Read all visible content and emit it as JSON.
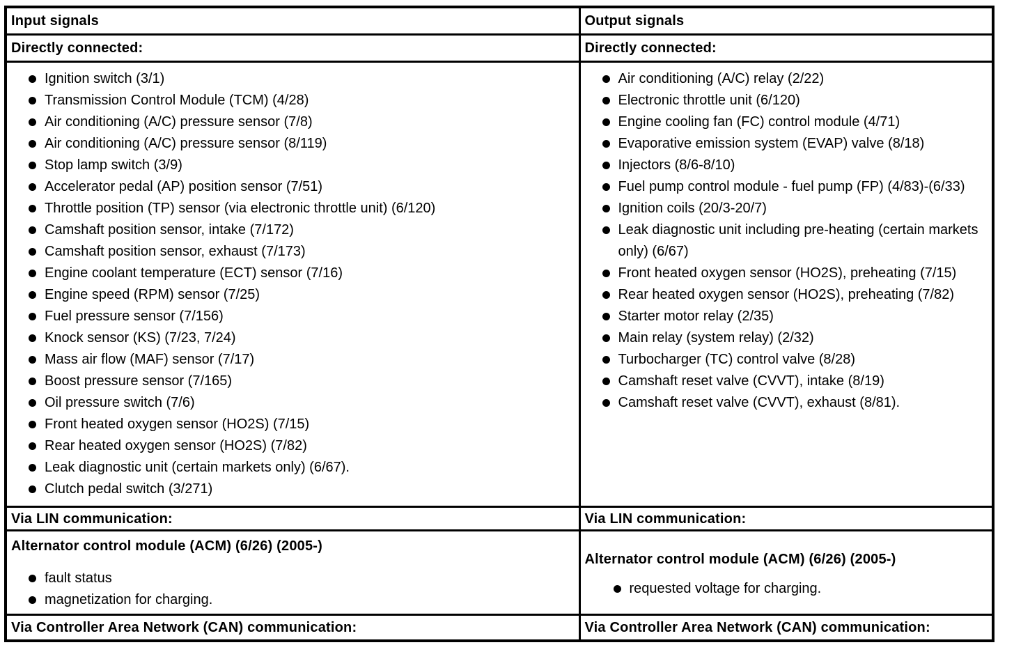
{
  "colors": {
    "text": "#000000",
    "border": "#000000",
    "background": "#ffffff"
  },
  "table": {
    "input": {
      "title": "Input signals",
      "direct_heading": "Directly connected:",
      "direct_items": [
        "Ignition switch (3/1)",
        "Transmission Control Module (TCM) (4/28)",
        "Air conditioning (A/C) pressure sensor (7/8)",
        "Air conditioning (A/C) pressure sensor (8/119)",
        "Stop lamp switch (3/9)",
        "Accelerator pedal (AP) position sensor (7/51)",
        "Throttle position (TP) sensor (via electronic throttle unit) (6/120)",
        "Camshaft position sensor, intake (7/172)",
        "Camshaft position sensor, exhaust (7/173)",
        "Engine coolant temperature (ECT) sensor (7/16)",
        "Engine speed (RPM) sensor (7/25)",
        "Fuel pressure sensor (7/156)",
        "Knock sensor (KS) (7/23, 7/24)",
        "Mass air flow (MAF) sensor (7/17)",
        "Boost pressure sensor (7/165)",
        "Oil pressure switch (7/6)",
        "Front heated oxygen sensor (HO2S) (7/15)",
        "Rear heated oxygen sensor (HO2S) (7/82)",
        "Leak diagnostic unit (certain markets only) (6/67).",
        "Clutch pedal switch (3/271)"
      ],
      "lin_heading": "Via LIN communication:",
      "acm_heading": "Alternator control module (ACM) (6/26) (2005-)",
      "acm_items": [
        "fault status",
        "magnetization for charging."
      ],
      "can_heading": "Via Controller Area Network (CAN) communication:"
    },
    "output": {
      "title": "Output signals",
      "direct_heading": "Directly connected:",
      "direct_items": [
        "Air conditioning (A/C) relay (2/22)",
        "Electronic throttle unit (6/120)",
        "Engine cooling fan (FC) control module (4/71)",
        "Evaporative emission system (EVAP) valve (8/18)",
        "Injectors (8/6-8/10)",
        "Fuel pump control module - fuel pump (FP) (4/83)-(6/33)",
        "Ignition coils (20/3-20/7)",
        "Leak diagnostic unit including pre-heating (certain markets only) (6/67)",
        "Front heated oxygen sensor (HO2S), preheating (7/15)",
        "Rear heated oxygen sensor (HO2S), preheating (7/82)",
        "Starter motor relay (2/35)",
        "Main relay (system relay) (2/32)",
        "Turbocharger (TC) control valve (8/28)",
        "Camshaft reset valve (CVVT), intake (8/19)",
        "Camshaft reset valve (CVVT), exhaust (8/81)."
      ],
      "lin_heading": "Via LIN communication:",
      "acm_heading": "Alternator control module (ACM) (6/26) (2005-)",
      "acm_items": [
        "requested voltage for charging."
      ],
      "can_heading": "Via Controller Area Network (CAN) communication:"
    }
  }
}
